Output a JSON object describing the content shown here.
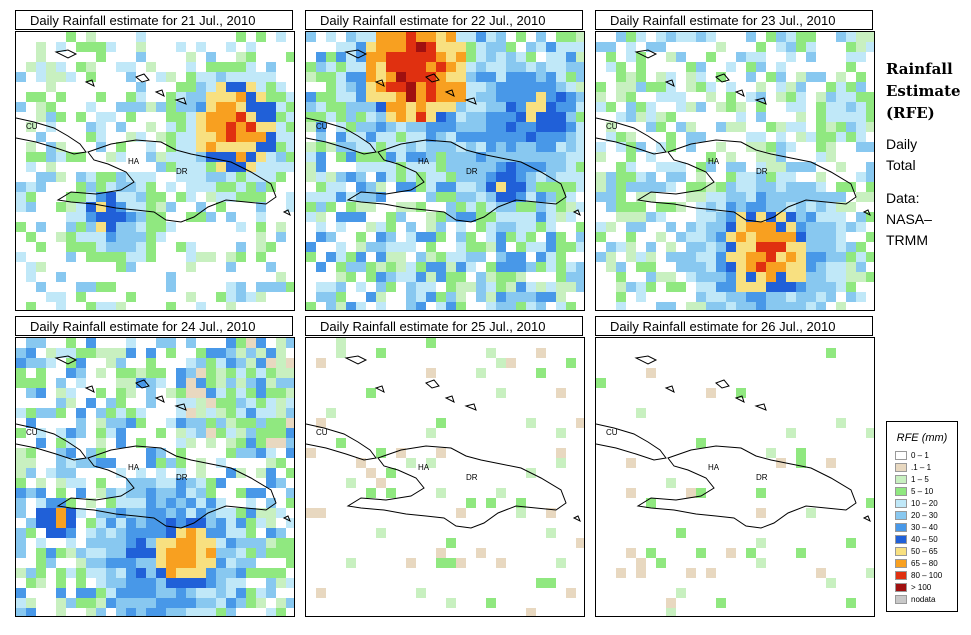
{
  "panels": [
    {
      "title": "Daily Rainfall estimate for  21 Jul., 2010",
      "key": "p1"
    },
    {
      "title": "Daily Rainfall estimate for  22 Jul., 2010",
      "key": "p2"
    },
    {
      "title": "Daily Rainfall estimate for  23 Jul., 2010",
      "key": "p3"
    },
    {
      "title": "Daily Rainfall estimate for  24 Jul., 2010",
      "key": "p4"
    },
    {
      "title": "Daily Rainfall estimate for  25 Jul., 2010",
      "key": "p5"
    },
    {
      "title": "Daily Rainfall estimate for  26 Jul., 2010",
      "key": "p6"
    }
  ],
  "map_labels": {
    "cu": "CU",
    "ha": "HA",
    "dr": "DR"
  },
  "side": {
    "title_line1": "Rainfall",
    "title_line2": "Estimate",
    "title_line3": "(RFE)",
    "period_line1": "Daily",
    "period_line2": "Total",
    "source_line1": "Data:",
    "source_line2": "NASA–",
    "source_line3": "TRMM"
  },
  "legend": {
    "title": "RFE (mm)",
    "items": [
      {
        "label": "0 – 1",
        "color": "#ffffff"
      },
      {
        "label": ".1 – 1",
        "color": "#e8d8c0"
      },
      {
        "label": "1 – 5",
        "color": "#c8f0c0"
      },
      {
        "label": "5 – 10",
        "color": "#90e880"
      },
      {
        "label": "10 – 20",
        "color": "#c0e8f8"
      },
      {
        "label": "20 – 30",
        "color": "#88c8f0"
      },
      {
        "label": "30 – 40",
        "color": "#4898e8"
      },
      {
        "label": "40 – 50",
        "color": "#2060d8"
      },
      {
        "label": "50 – 65",
        "color": "#f8e080"
      },
      {
        "label": "65 – 80",
        "color": "#f8a020"
      },
      {
        "label": "80 – 100",
        "color": "#e03010"
      },
      {
        "label": "> 100",
        "color": "#a01010"
      },
      {
        "label": "nodata",
        "color": "#c8c8c8"
      }
    ]
  }
}
